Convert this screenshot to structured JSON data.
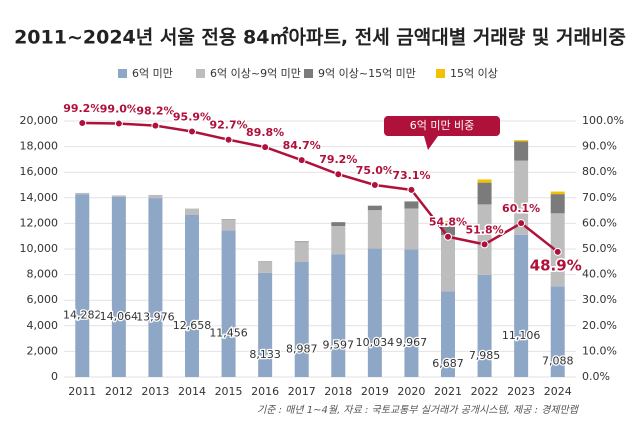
{
  "chart_data": {
    "type": "bar_line",
    "title": "2011~2024년 서울 전용 84㎡아파트, 전세 금액대별 거래량 및 거래비중",
    "annotation": "6억 미만 비중",
    "source": "기준 : 매년 1~4월, 자료 : 국토교통부 실거래가 공개시스템, 제공 : 경제만랩",
    "categories": [
      "2011",
      "2012",
      "2013",
      "2014",
      "2015",
      "2016",
      "2017",
      "2018",
      "2019",
      "2020",
      "2021",
      "2022",
      "2023",
      "2024"
    ],
    "series": [
      {
        "name": "6억 미만",
        "color": "#8fa7c6",
        "values": [
          14282,
          14064,
          13976,
          12658,
          11456,
          8133,
          8987,
          9597,
          10034,
          9967,
          6687,
          7985,
          11106,
          7088
        ],
        "value_labels": [
          "14,282",
          "14,064",
          "13,976",
          "12,658",
          "11,456",
          "8,133",
          "8,987",
          "9,597",
          "10,034",
          "9,967",
          "6,687",
          "7,985",
          "11,106",
          "7,088"
        ]
      },
      {
        "name": "6억 이상~9억 미만",
        "color": "#bdbdbd",
        "values": [
          100,
          120,
          250,
          500,
          850,
          900,
          1550,
          2200,
          3000,
          3200,
          4400,
          5500,
          5800,
          5700
        ]
      },
      {
        "name": "9억 이상~15억 미만",
        "color": "#7b7b7b",
        "values": [
          0,
          0,
          0,
          0,
          30,
          20,
          60,
          300,
          350,
          550,
          1000,
          1700,
          1500,
          1500
        ]
      },
      {
        "name": "15억 이상",
        "color": "#f2c200",
        "values": [
          0,
          0,
          0,
          0,
          0,
          0,
          0,
          0,
          0,
          0,
          100,
          250,
          100,
          200
        ]
      },
      {
        "name": "6억 미만 비중",
        "axis": "y2",
        "color": "#b0113a",
        "values": [
          99.2,
          99.0,
          98.2,
          95.9,
          92.7,
          89.8,
          84.7,
          79.2,
          75.0,
          73.1,
          54.8,
          51.8,
          60.1,
          48.9
        ],
        "value_labels": [
          "99.2%",
          "99.0%",
          "98.2%",
          "95.9%",
          "92.7%",
          "89.8%",
          "84.7%",
          "79.2%",
          "75.0%",
          "73.1%",
          "54.8%",
          "51.8%",
          "60.1%",
          "48.9%"
        ]
      }
    ],
    "ylim": [
      0,
      20000
    ],
    "yticks": [
      0,
      {
        "value": 2000,
        "label": "2,000"
      },
      {
        "value": 4000,
        "label": "4,000"
      },
      {
        "value": 6000,
        "label": "6,000"
      },
      {
        "value": 8000,
        "label": "8,000"
      },
      {
        "value": 10000,
        "label": "10,000"
      },
      {
        "value": 12000,
        "label": "12,000"
      },
      {
        "value": 14000,
        "label": "14,000"
      },
      {
        "value": 16000,
        "label": "16,000"
      },
      {
        "value": 18000,
        "label": "18,000"
      },
      {
        "value": 20000,
        "label": "20,000"
      }
    ],
    "y2lim": [
      0,
      100
    ],
    "y2ticks": [
      {
        "value": 0,
        "label": "0.0%"
      },
      {
        "value": 10,
        "label": "10.0%"
      },
      {
        "value": 20,
        "label": "20.0%"
      },
      {
        "value": 30,
        "label": "30.0%"
      },
      {
        "value": 40,
        "label": "40.0%"
      },
      {
        "value": 50,
        "label": "50.0%"
      },
      {
        "value": 60,
        "label": "60.0%"
      },
      {
        "value": 70,
        "label": "70.0%"
      },
      {
        "value": 80,
        "label": "80.0%"
      },
      {
        "value": 90,
        "label": "90.0%"
      },
      {
        "value": 100,
        "label": "100.0%"
      }
    ],
    "grid": true
  }
}
